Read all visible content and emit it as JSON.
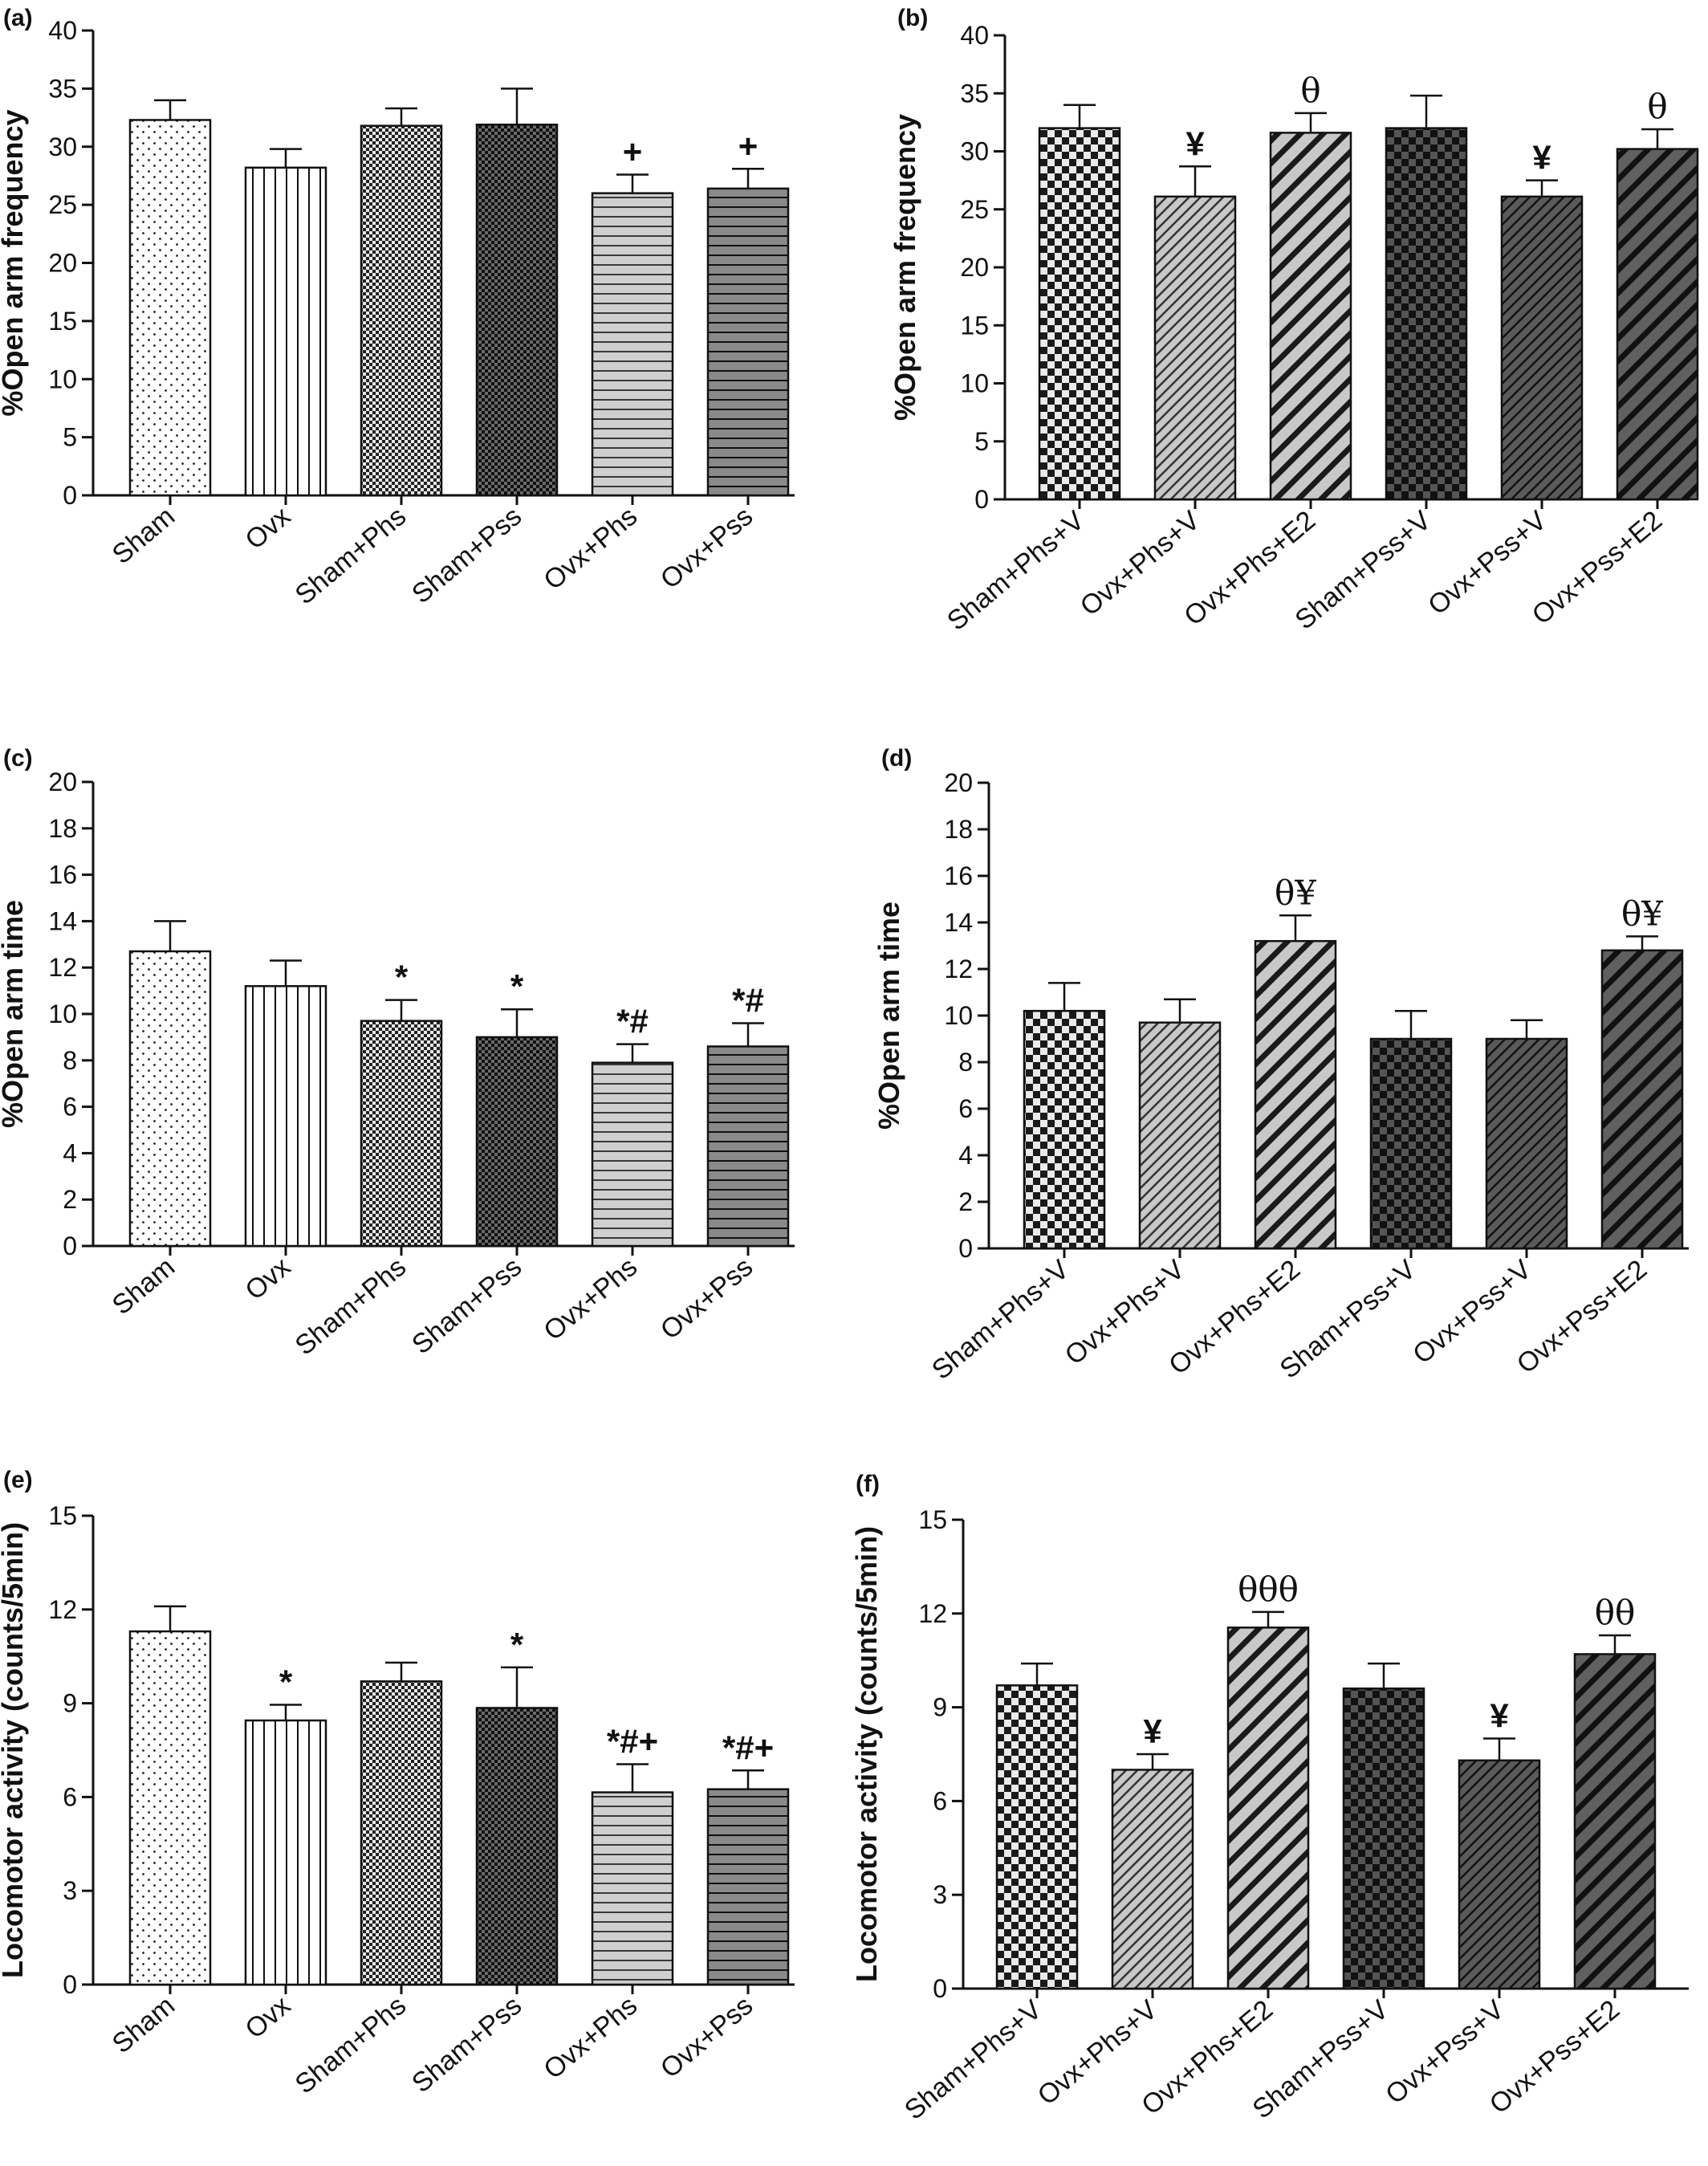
{
  "colors": {
    "axis": "#111111",
    "light_fill": "#d0d0d0",
    "mid_fill": "#8a8a8a",
    "dark_fill": "#3a3a3a"
  },
  "chart_data": [
    {
      "panel": "(a)",
      "type": "bar",
      "ylabel": "%Open arm frequency",
      "ylim": [
        0,
        40
      ],
      "ytick_step": 5,
      "categories": [
        "Sham",
        "Ovx",
        "Sham+Phs",
        "Sham+Pss",
        "Ovx+Phs",
        "Ovx+Pss"
      ],
      "values": [
        32.3,
        28.2,
        31.8,
        31.9,
        26.0,
        26.4
      ],
      "errors": [
        1.7,
        1.6,
        1.5,
        3.1,
        1.6,
        1.7
      ],
      "annotations": [
        "",
        "",
        "",
        "",
        "+",
        "+"
      ],
      "patterns": [
        "dots",
        "vlines",
        "checker-fine",
        "checker-fine-dark",
        "hlines-light",
        "hlines-dark"
      ]
    },
    {
      "panel": "(b)",
      "type": "bar",
      "ylabel": "%Open arm frequency",
      "ylim": [
        0,
        40
      ],
      "ytick_step": 5,
      "categories": [
        "Sham+Phs+V",
        "Ovx+Phs+V",
        "Ovx+Phs+E2",
        "Sham+Pss+V",
        "Ovx+Pss+V",
        "Ovx+Pss+E2"
      ],
      "values": [
        32.0,
        26.1,
        31.6,
        32.0,
        26.1,
        30.2
      ],
      "errors": [
        2.0,
        2.6,
        1.7,
        2.8,
        1.4,
        1.7
      ],
      "annotations": [
        "",
        "¥",
        "θ",
        "",
        "¥",
        "θ"
      ],
      "patterns": [
        "checker-coarse",
        "diag-thin-light",
        "diag-thick-light",
        "checker-coarse-dark",
        "diag-thin-dark",
        "diag-thick-dark"
      ]
    },
    {
      "panel": "(c)",
      "type": "bar",
      "ylabel": "%Open arm time",
      "ylim": [
        0,
        20
      ],
      "ytick_step": 2,
      "categories": [
        "Sham",
        "Ovx",
        "Sham+Phs",
        "Sham+Pss",
        "Ovx+Phs",
        "Ovx+Pss"
      ],
      "values": [
        12.7,
        11.2,
        9.7,
        9.0,
        7.9,
        8.6
      ],
      "errors": [
        1.3,
        1.1,
        0.9,
        1.2,
        0.8,
        1.0
      ],
      "annotations": [
        "",
        "",
        "*",
        "*",
        "*#",
        "*#"
      ],
      "patterns": [
        "dots",
        "vlines",
        "checker-fine",
        "checker-fine-dark",
        "hlines-light",
        "hlines-dark"
      ]
    },
    {
      "panel": "(d)",
      "type": "bar",
      "ylabel": "%Open arm time",
      "ylim": [
        0,
        20
      ],
      "ytick_step": 2,
      "categories": [
        "Sham+Phs+V",
        "Ovx+Phs+V",
        "Ovx+Phs+E2",
        "Sham+Pss+V",
        "Ovx+Pss+V",
        "Ovx+Pss+E2"
      ],
      "values": [
        10.2,
        9.7,
        13.2,
        9.0,
        9.0,
        12.8
      ],
      "errors": [
        1.2,
        1.0,
        1.1,
        1.2,
        0.8,
        0.6
      ],
      "annotations": [
        "",
        "",
        "θ¥",
        "",
        "",
        "θ¥"
      ],
      "patterns": [
        "checker-coarse",
        "diag-thin-light",
        "diag-thick-light",
        "checker-coarse-dark",
        "diag-thin-dark",
        "diag-thick-dark"
      ]
    },
    {
      "panel": "(e)",
      "type": "bar",
      "ylabel": "Locomotor activity (counts/5min)",
      "ylim": [
        0,
        15
      ],
      "ytick_step": 3,
      "categories": [
        "Sham",
        "Ovx",
        "Sham+Phs",
        "Sham+Pss",
        "Ovx+Phs",
        "Ovx+Pss"
      ],
      "values": [
        11.3,
        8.45,
        9.7,
        8.85,
        6.15,
        6.25
      ],
      "errors": [
        0.8,
        0.5,
        0.6,
        1.3,
        0.9,
        0.6
      ],
      "annotations": [
        "",
        "*",
        "",
        "*",
        "*#+",
        "*#+"
      ],
      "patterns": [
        "dots",
        "vlines",
        "checker-fine",
        "checker-fine-dark",
        "hlines-light",
        "hlines-dark"
      ]
    },
    {
      "panel": "(f)",
      "type": "bar",
      "ylabel": "Locomotor activity (counts/5min)",
      "ylim": [
        0,
        15
      ],
      "ytick_step": 3,
      "categories": [
        "Sham+Phs+V",
        "Ovx+Phs+V",
        "Ovx+Phs+E2",
        "Sham+Pss+V",
        "Ovx+Pss+V",
        "Ovx+Pss+E2"
      ],
      "values": [
        9.7,
        7.0,
        11.55,
        9.6,
        7.3,
        10.7
      ],
      "errors": [
        0.7,
        0.5,
        0.5,
        0.8,
        0.7,
        0.6
      ],
      "annotations": [
        "",
        "¥",
        "θθθ",
        "",
        "¥",
        "θθ"
      ],
      "patterns": [
        "checker-coarse",
        "diag-thin-light",
        "diag-thick-light",
        "checker-coarse-dark",
        "diag-thin-dark",
        "diag-thick-dark"
      ]
    }
  ]
}
